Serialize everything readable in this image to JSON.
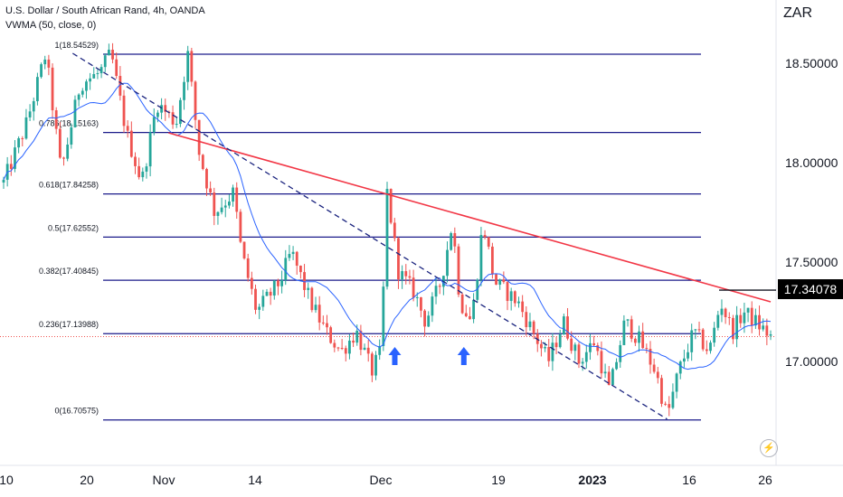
{
  "header": {
    "title": "U.S. Dollar / South African Rand, 4h, OANDA",
    "indicator": "VWMA (50, close, 0)",
    "currency": "ZAR"
  },
  "colors": {
    "bull": "#26a69a",
    "bear": "#ef5350",
    "fib": "#1a1a8a",
    "trend_red": "#f23645",
    "trend_dash": "#1a237e",
    "vwma": "#2962ff",
    "arrow": "#2962ff"
  },
  "chart_data": {
    "type": "candlestick",
    "title": "U.S. Dollar / South African Rand, 4h, OANDA",
    "y_axis": {
      "ticks": [
        {
          "value": 18.5,
          "label": "18.50000"
        },
        {
          "value": 18.0,
          "label": "18.00000"
        },
        {
          "value": 17.5,
          "label": "17.50000"
        },
        {
          "value": 17.0,
          "label": "17.00000"
        }
      ],
      "range": [
        16.5,
        18.75
      ]
    },
    "x_axis": {
      "ticks": [
        {
          "label": "10",
          "bold": false
        },
        {
          "label": "20",
          "bold": false
        },
        {
          "label": "Nov",
          "bold": false
        },
        {
          "label": "14",
          "bold": false
        },
        {
          "label": "Dec",
          "bold": false
        },
        {
          "label": "19",
          "bold": false
        },
        {
          "label": "2023",
          "bold": true
        },
        {
          "label": "16",
          "bold": false
        },
        {
          "label": "26",
          "bold": false
        }
      ]
    },
    "current_price": {
      "value": 17.34078,
      "label": "17.34078"
    },
    "last_close": 17.125,
    "fib_levels": [
      {
        "ratio": 1,
        "price": 18.54529,
        "label": "1(18.54529)"
      },
      {
        "ratio": 0.786,
        "price": 18.15163,
        "label": "0.786(18.15163)"
      },
      {
        "ratio": 0.618,
        "price": 17.84258,
        "label": "0.618(17.84258)"
      },
      {
        "ratio": 0.5,
        "price": 17.62552,
        "label": "0.5(17.62552)"
      },
      {
        "ratio": 0.382,
        "price": 17.40845,
        "label": "0.382(17.40845)"
      },
      {
        "ratio": 0.236,
        "price": 17.13988,
        "label": "0.236(17.13988)"
      },
      {
        "ratio": 0,
        "price": 16.70575,
        "label": "0(16.70575)"
      }
    ],
    "trendlines": [
      {
        "style": "solid",
        "from": {
          "t": 0.215,
          "price": 18.15
        },
        "to": {
          "t": 1.0,
          "price": 17.3
        }
      },
      {
        "style": "dashed",
        "from": {
          "t": 0.09,
          "price": 18.55
        },
        "to": {
          "t": 0.865,
          "price": 16.71
        }
      }
    ],
    "arrows": [
      {
        "t": 0.51
      },
      {
        "t": 0.6
      }
    ],
    "path": [
      [
        0.0,
        17.9
      ],
      [
        0.03,
        18.2
      ],
      [
        0.055,
        18.55
      ],
      [
        0.075,
        17.95
      ],
      [
        0.1,
        18.4
      ],
      [
        0.125,
        18.45
      ],
      [
        0.14,
        18.55
      ],
      [
        0.16,
        18.15
      ],
      [
        0.18,
        17.9
      ],
      [
        0.2,
        18.3
      ],
      [
        0.225,
        18.2
      ],
      [
        0.24,
        18.55
      ],
      [
        0.255,
        18.05
      ],
      [
        0.275,
        17.75
      ],
      [
        0.3,
        17.85
      ],
      [
        0.31,
        17.55
      ],
      [
        0.33,
        17.25
      ],
      [
        0.36,
        17.4
      ],
      [
        0.375,
        17.55
      ],
      [
        0.4,
        17.3
      ],
      [
        0.42,
        17.15
      ],
      [
        0.44,
        17.05
      ],
      [
        0.46,
        17.15
      ],
      [
        0.48,
        16.95
      ],
      [
        0.492,
        17.05
      ],
      [
        0.5,
        17.85
      ],
      [
        0.515,
        17.45
      ],
      [
        0.535,
        17.35
      ],
      [
        0.55,
        17.2
      ],
      [
        0.57,
        17.4
      ],
      [
        0.585,
        17.7
      ],
      [
        0.595,
        17.3
      ],
      [
        0.61,
        17.2
      ],
      [
        0.625,
        17.7
      ],
      [
        0.64,
        17.4
      ],
      [
        0.655,
        17.35
      ],
      [
        0.67,
        17.3
      ],
      [
        0.69,
        17.15
      ],
      [
        0.71,
        17.0
      ],
      [
        0.73,
        17.2
      ],
      [
        0.75,
        17.0
      ],
      [
        0.77,
        17.1
      ],
      [
        0.79,
        16.85
      ],
      [
        0.81,
        17.2
      ],
      [
        0.83,
        17.1
      ],
      [
        0.85,
        16.95
      ],
      [
        0.865,
        16.72
      ],
      [
        0.88,
        16.95
      ],
      [
        0.9,
        17.15
      ],
      [
        0.92,
        17.05
      ],
      [
        0.935,
        17.3
      ],
      [
        0.95,
        17.15
      ],
      [
        0.965,
        17.25
      ],
      [
        0.98,
        17.2
      ],
      [
        1.0,
        17.125
      ]
    ]
  }
}
